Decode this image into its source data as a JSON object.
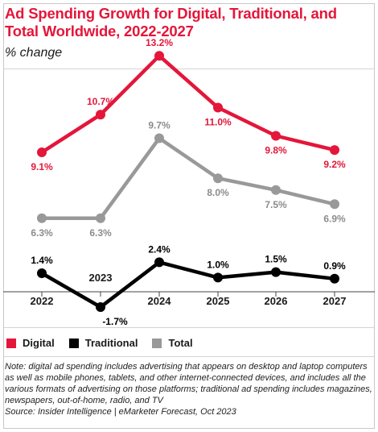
{
  "header": {
    "title": "Ad Spending Growth for Digital, Traditional, and Total Worldwide, 2022-2027",
    "subtitle": "% change"
  },
  "chart_data": {
    "type": "line",
    "categories": [
      "2022",
      "2023",
      "2024",
      "2025",
      "2026",
      "2027"
    ],
    "series": [
      {
        "name": "Digital",
        "color": "#e4163a",
        "values": [
          9.1,
          10.7,
          13.2,
          11.0,
          9.8,
          9.2
        ],
        "labels": [
          "9.1%",
          "10.7%",
          "13.2%",
          "11.0%",
          "9.8%",
          "9.2%"
        ]
      },
      {
        "name": "Traditional",
        "color": "#000000",
        "values": [
          1.4,
          -1.7,
          2.4,
          1.0,
          1.5,
          0.9
        ],
        "labels": [
          "1.4%",
          "-1.7%",
          "2.4%",
          "1.0%",
          "1.5%",
          "0.9%"
        ]
      },
      {
        "name": "Total",
        "color": "#999999",
        "values": [
          6.3,
          6.3,
          9.7,
          8.0,
          7.5,
          6.9
        ],
        "labels": [
          "6.3%",
          "6.3%",
          "9.7%",
          "8.0%",
          "7.5%",
          "6.9%"
        ]
      }
    ]
  },
  "legend": {
    "items": [
      {
        "label": "Digital",
        "color": "#e4163a"
      },
      {
        "label": "Traditional",
        "color": "#000000"
      },
      {
        "label": "Total",
        "color": "#999999"
      }
    ]
  },
  "footer": {
    "note": "Note: digital ad spending includes advertising that appears on desktop and laptop computers as well as mobile phones, tablets, and other internet-connected devices, and includes all the various formats of advertising on those platforms; traditional ad spending includes magazines, newspapers, out-of-home, radio, and TV",
    "source": "Source: Insider Intelligence | eMarketer Forecast, Oct 2023"
  }
}
